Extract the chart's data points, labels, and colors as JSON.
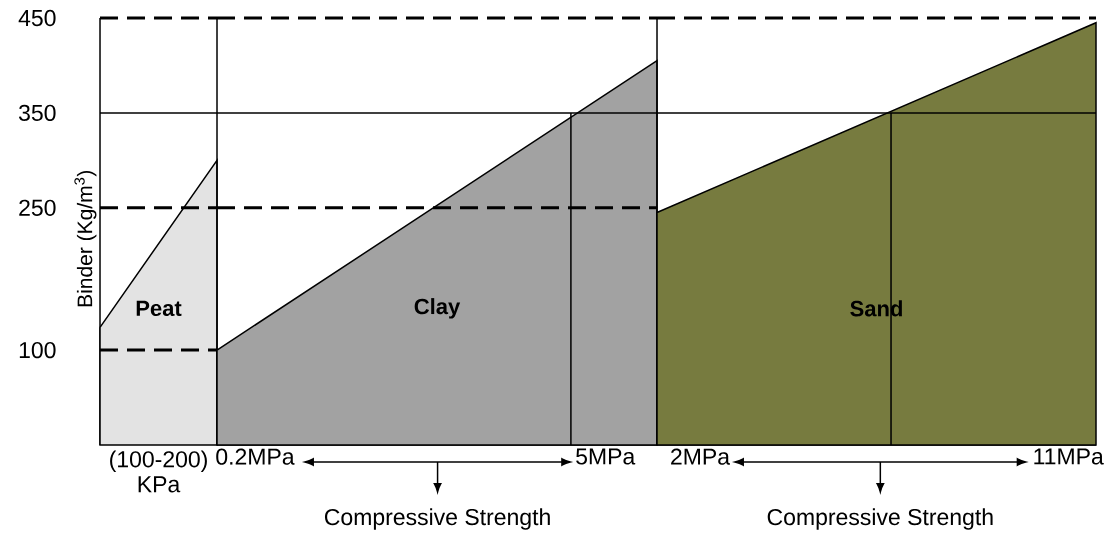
{
  "chart_data": [
    {
      "type": "area",
      "ylabel": "Binder (Kg/m$^{3}$)",
      "xlabel": "(100-200) KPa",
      "categories": [
        null,
        null
      ],
      "ylim": [
        0,
        450
      ],
      "yticks": [
        100,
        250,
        350,
        450
      ],
      "tick_labels": "y",
      "series": [
        {
          "name": "Peat",
          "color": "#e3e3e3",
          "values": [
            124,
            300
          ]
        }
      ],
      "ref_lines": [
        {
          "axis": "y",
          "value": 100,
          "line_style": "dashed"
        },
        {
          "axis": "y",
          "value": 250,
          "line_style": "dashed"
        },
        {
          "axis": "y",
          "value": 350,
          "line_style": "solid"
        },
        {
          "axis": "y",
          "value": 450,
          "line_style": "dashed"
        }
      ]
    },
    {
      "type": "area",
      "xlim": [
        -0.32,
        5.71
      ],
      "xticks": [
        {
          "value": 0.2,
          "label": "0.2MPa"
        },
        {
          "value": 5,
          "label": "5MPa"
        }
      ],
      "ylim": [
        0,
        450
      ],
      "tick_labels": "x",
      "annotations": [
        "Compressive Strength"
      ],
      "series": [
        {
          "name": "Clay",
          "color": "#a2a2a2",
          "x": [
            -0.32,
            5.71
          ],
          "values": [
            100,
            405
          ]
        },
        {
          "type": "line",
          "color": "#000000",
          "x": [
            4.53,
            4.53
          ],
          "values": [
            0,
            350
          ]
        }
      ],
      "ref_lines": [
        {
          "axis": "y",
          "value": 250,
          "line_style": "dashed"
        },
        {
          "axis": "y",
          "value": 350,
          "line_style": "solid"
        },
        {
          "axis": "y",
          "value": 450,
          "line_style": "dashed"
        }
      ]
    },
    {
      "type": "area",
      "xlim": [
        0.95,
        11.68
      ],
      "xticks": [
        {
          "value": 2,
          "label": "2MPa"
        },
        {
          "value": 11,
          "label": "11MPa"
        }
      ],
      "ylim": [
        0,
        450
      ],
      "tick_labels": "x",
      "annotations": [
        "Compressive Strength"
      ],
      "series": [
        {
          "name": "Sand",
          "color": "#777b3f",
          "x": [
            0.95,
            11.68
          ],
          "values": [
            245,
            445
          ]
        },
        {
          "type": "line",
          "color": "#000000",
          "x": [
            6.67,
            6.67
          ],
          "values": [
            0,
            350
          ]
        }
      ],
      "ref_lines": [
        {
          "axis": "y",
          "value": 350,
          "line_style": "solid"
        },
        {
          "axis": "y",
          "value": 450,
          "line_style": "dashed"
        }
      ]
    }
  ]
}
